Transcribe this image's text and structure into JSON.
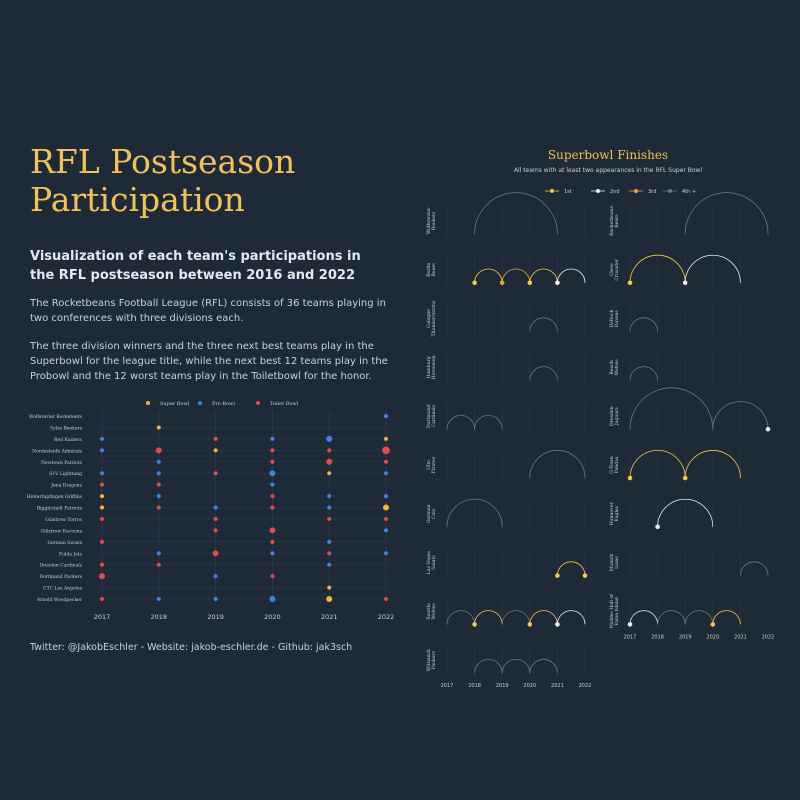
{
  "title": "RFL Postseason Participation",
  "subtitle": "Visualization of each team's participations in the RFL postseason between 2016 and 2022",
  "paragraph1": "The Rocketbeans Football League (RFL) consists of 36 teams playing in two conferences with three divisions each.",
  "paragraph2": "The three division winners and the three next best teams play in the Superbowl for the league title, while the next best 12 teams play in the Probowl and the 12 worst teams play in the Toiletbowl for the honor.",
  "footer": "Twitter: @JakobEschler - Website: jakob-eschler.de - Github: jak3sch",
  "colors": {
    "background": "#1f2a38",
    "title": "#f2c15a",
    "superbowl": "#f2b33d",
    "probowl": "#3d84e6",
    "toiletbowl": "#e24b4b",
    "first": "#f5c842",
    "second": "#e8ecf0",
    "third": "#e8a030",
    "fourth_plus": "#6c7886"
  },
  "chart_data": [
    {
      "type": "scatter",
      "legend": [
        "Super Bowl",
        "Pro Bowl",
        "Toilet Bowl"
      ],
      "legend_position": "top",
      "x": [
        2017,
        2018,
        2019,
        2020,
        2021,
        2022
      ],
      "teams": [
        "Wolfsrevier Rocketeers",
        "Sylas Beekers",
        "Red Raiders",
        "Nordesleidh Admirals",
        "Newtown Patriots",
        "SI-V Lightning",
        "Jena Dragons",
        "Hintertupfingen Griffins",
        "Bigglystadt Patriots",
        "Gülstrow Torros",
        "Gülstrow Racoons",
        "German Swans",
        "Fulda Jets",
        "Dresden Cardinals",
        "Dortmund Packers",
        "CTC Los Angeles",
        "Arnold Woodpecker"
      ],
      "points": [
        {
          "team": "Wolfsrevier Rocketeers",
          "year": 2022,
          "bowl": "Pro Bowl",
          "size": 1
        },
        {
          "team": "Sylas Beekers",
          "year": 2018,
          "bowl": "Super Bowl",
          "size": 1
        },
        {
          "team": "Red Raiders",
          "year": 2017,
          "bowl": "Pro Bowl",
          "size": 1
        },
        {
          "team": "Red Raiders",
          "year": 2019,
          "bowl": "Toilet Bowl",
          "size": 1
        },
        {
          "team": "Red Raiders",
          "year": 2020,
          "bowl": "Pro Bowl",
          "size": 1
        },
        {
          "team": "Red Raiders",
          "year": 2021,
          "bowl": "Pro Bowl",
          "size": 2
        },
        {
          "team": "Red Raiders",
          "year": 2022,
          "bowl": "Super Bowl",
          "size": 1
        },
        {
          "team": "Nordesleidh Admirals",
          "year": 2017,
          "bowl": "Pro Bowl",
          "size": 1
        },
        {
          "team": "Nordesleidh Admirals",
          "year": 2018,
          "bowl": "Toilet Bowl",
          "size": 2
        },
        {
          "team": "Nordesleidh Admirals",
          "year": 2019,
          "bowl": "Super Bowl",
          "size": 1
        },
        {
          "team": "Nordesleidh Admirals",
          "year": 2020,
          "bowl": "Toilet Bowl",
          "size": 1
        },
        {
          "team": "Nordesleidh Admirals",
          "year": 2021,
          "bowl": "Toilet Bowl",
          "size": 1
        },
        {
          "team": "Nordesleidh Admirals",
          "year": 2022,
          "bowl": "Toilet Bowl",
          "size": 3
        },
        {
          "team": "Newtown Patriots",
          "year": 2018,
          "bowl": "Pro Bowl",
          "size": 1
        },
        {
          "team": "Newtown Patriots",
          "year": 2020,
          "bowl": "Toilet Bowl",
          "size": 1
        },
        {
          "team": "Newtown Patriots",
          "year": 2021,
          "bowl": "Toilet Bowl",
          "size": 2
        },
        {
          "team": "Newtown Patriots",
          "year": 2022,
          "bowl": "Toilet Bowl",
          "size": 1
        },
        {
          "team": "SI-V Lightning",
          "year": 2017,
          "bowl": "Pro Bowl",
          "size": 1
        },
        {
          "team": "SI-V Lightning",
          "year": 2018,
          "bowl": "Pro Bowl",
          "size": 1
        },
        {
          "team": "SI-V Lightning",
          "year": 2019,
          "bowl": "Toilet Bowl",
          "size": 1
        },
        {
          "team": "SI-V Lightning",
          "year": 2020,
          "bowl": "Pro Bowl",
          "size": 2
        },
        {
          "team": "SI-V Lightning",
          "year": 2021,
          "bowl": "Super Bowl",
          "size": 1
        },
        {
          "team": "SI-V Lightning",
          "year": 2022,
          "bowl": "Pro Bowl",
          "size": 1
        },
        {
          "team": "Jena Dragons",
          "year": 2017,
          "bowl": "Toilet Bowl",
          "size": 1
        },
        {
          "team": "Jena Dragons",
          "year": 2018,
          "bowl": "Toilet Bowl",
          "size": 1
        },
        {
          "team": "Jena Dragons",
          "year": 2020,
          "bowl": "Pro Bowl",
          "size": 1
        },
        {
          "team": "Hintertupfingen Griffins",
          "year": 2017,
          "bowl": "Super Bowl",
          "size": 1
        },
        {
          "team": "Hintertupfingen Griffins",
          "year": 2018,
          "bowl": "Pro Bowl",
          "size": 1
        },
        {
          "team": "Hintertupfingen Griffins",
          "year": 2020,
          "bowl": "Toilet Bowl",
          "size": 1
        },
        {
          "team": "Hintertupfingen Griffins",
          "year": 2021,
          "bowl": "Pro Bowl",
          "size": 1
        },
        {
          "team": "Hintertupfingen Griffins",
          "year": 2022,
          "bowl": "Pro Bowl",
          "size": 1
        },
        {
          "team": "Bigglystadt Patriots",
          "year": 2017,
          "bowl": "Super Bowl",
          "size": 1
        },
        {
          "team": "Bigglystadt Patriots",
          "year": 2018,
          "bowl": "Toilet Bowl",
          "size": 1
        },
        {
          "team": "Bigglystadt Patriots",
          "year": 2019,
          "bowl": "Pro Bowl",
          "size": 1
        },
        {
          "team": "Bigglystadt Patriots",
          "year": 2020,
          "bowl": "Toilet Bowl",
          "size": 1
        },
        {
          "team": "Bigglystadt Patriots",
          "year": 2021,
          "bowl": "Pro Bowl",
          "size": 1
        },
        {
          "team": "Bigglystadt Patriots",
          "year": 2022,
          "bowl": "Super Bowl",
          "size": 2
        },
        {
          "team": "Gülstrow Torros",
          "year": 2017,
          "bowl": "Toilet Bowl",
          "size": 1
        },
        {
          "team": "Gülstrow Torros",
          "year": 2019,
          "bowl": "Toilet Bowl",
          "size": 1
        },
        {
          "team": "Gülstrow Torros",
          "year": 2021,
          "bowl": "Toilet Bowl",
          "size": 1
        },
        {
          "team": "Gülstrow Torros",
          "year": 2022,
          "bowl": "Toilet Bowl",
          "size": 1
        },
        {
          "team": "Gülstrow Racoons",
          "year": 2019,
          "bowl": "Toilet Bowl",
          "size": 1
        },
        {
          "team": "Gülstrow Racoons",
          "year": 2020,
          "bowl": "Toilet Bowl",
          "size": 2
        },
        {
          "team": "Gülstrow Racoons",
          "year": 2022,
          "bowl": "Pro Bowl",
          "size": 1
        },
        {
          "team": "German Swans",
          "year": 2017,
          "bowl": "Toilet Bowl",
          "size": 1
        },
        {
          "team": "German Swans",
          "year": 2020,
          "bowl": "Toilet Bowl",
          "size": 1
        },
        {
          "team": "German Swans",
          "year": 2021,
          "bowl": "Pro Bowl",
          "size": 1
        },
        {
          "team": "Fulda Jets",
          "year": 2018,
          "bowl": "Pro Bowl",
          "size": 1
        },
        {
          "team": "Fulda Jets",
          "year": 2019,
          "bowl": "Toilet Bowl",
          "size": 2
        },
        {
          "team": "Fulda Jets",
          "year": 2020,
          "bowl": "Pro Bowl",
          "size": 1
        },
        {
          "team": "Fulda Jets",
          "year": 2021,
          "bowl": "Toilet Bowl",
          "size": 1
        },
        {
          "team": "Fulda Jets",
          "year": 2022,
          "bowl": "Pro Bowl",
          "size": 1
        },
        {
          "team": "Dresden Cardinals",
          "year": 2017,
          "bowl": "Toilet Bowl",
          "size": 1
        },
        {
          "team": "Dresden Cardinals",
          "year": 2018,
          "bowl": "Toilet Bowl",
          "size": 1
        },
        {
          "team": "Dresden Cardinals",
          "year": 2021,
          "bowl": "Pro Bowl",
          "size": 1
        },
        {
          "team": "Dortmund Packers",
          "year": 2017,
          "bowl": "Toilet Bowl",
          "size": 2
        },
        {
          "team": "Dortmund Packers",
          "year": 2019,
          "bowl": "Pro Bowl",
          "size": 1
        },
        {
          "team": "Dortmund Packers",
          "year": 2020,
          "bowl": "Toilet Bowl",
          "size": 1
        },
        {
          "team": "CTC Los Angeles",
          "year": 2021,
          "bowl": "Super Bowl",
          "size": 1
        },
        {
          "team": "Arnold Woodpecker",
          "year": 2017,
          "bowl": "Toilet Bowl",
          "size": 1
        },
        {
          "team": "Arnold Woodpecker",
          "year": 2018,
          "bowl": "Pro Bowl",
          "size": 1
        },
        {
          "team": "Arnold Woodpecker",
          "year": 2019,
          "bowl": "Pro Bowl",
          "size": 1
        },
        {
          "team": "Arnold Woodpecker",
          "year": 2020,
          "bowl": "Pro Bowl",
          "size": 2
        },
        {
          "team": "Arnold Woodpecker",
          "year": 2021,
          "bowl": "Super Bowl",
          "size": 2
        },
        {
          "team": "Arnold Woodpecker",
          "year": 2022,
          "bowl": "Toilet Bowl",
          "size": 1
        }
      ]
    },
    {
      "type": "line",
      "title": "Superbowl Finishes",
      "subtitle": "All teams with at least two appearances in the RFL Super Bowl",
      "legend": [
        "1st",
        "2nd",
        "3rd",
        "4th +"
      ],
      "legend_position": "top",
      "x": [
        2017,
        2018,
        2019,
        2020,
        2021,
        2022
      ],
      "panels": [
        {
          "team": "Wolfsrevier Rockets",
          "column": 0,
          "row": 0,
          "appearances": [
            {
              "year": 2018,
              "place": "4th +"
            },
            {
              "year": 2021,
              "place": "4th +"
            }
          ]
        },
        {
          "team": "Berlin Bears",
          "column": 0,
          "row": 1,
          "appearances": [
            {
              "year": 2018,
              "place": "1st"
            },
            {
              "year": 2019,
              "place": "3rd"
            },
            {
              "year": 2020,
              "place": "1st"
            },
            {
              "year": 2021,
              "place": "2nd"
            },
            {
              "year": 2022,
              "place": "4th +"
            }
          ]
        },
        {
          "team": "Cologne Thunderstorms",
          "column": 0,
          "row": 2,
          "appearances": [
            {
              "year": 2020,
              "place": "4th +"
            },
            {
              "year": 2021,
              "place": "4th +"
            }
          ]
        },
        {
          "team": "Hamburg Horsemen",
          "column": 0,
          "row": 3,
          "appearances": [
            {
              "year": 2020,
              "place": "4th +"
            },
            {
              "year": 2021,
              "place": "4th +"
            }
          ]
        },
        {
          "team": "Dortmund Cardinals",
          "column": 0,
          "row": 4,
          "appearances": [
            {
              "year": 2017,
              "place": "4th +"
            },
            {
              "year": 2018,
              "place": "4th +"
            },
            {
              "year": 2019,
              "place": "4th +"
            }
          ]
        },
        {
          "team": "Ulm Pirates",
          "column": 0,
          "row": 5,
          "appearances": [
            {
              "year": 2020,
              "place": "4th +"
            },
            {
              "year": 2022,
              "place": "4th +"
            }
          ]
        },
        {
          "team": "German Cats",
          "column": 0,
          "row": 6,
          "appearances": [
            {
              "year": 2017,
              "place": "4th +"
            },
            {
              "year": 2019,
              "place": "4th +"
            }
          ]
        },
        {
          "team": "Las Vegas Saints",
          "column": 0,
          "row": 7,
          "appearances": [
            {
              "year": 2021,
              "place": "1st"
            },
            {
              "year": 2022,
              "place": "1st"
            }
          ]
        },
        {
          "team": "Seattle Wolves",
          "column": 0,
          "row": 8,
          "appearances": [
            {
              "year": 2017,
              "place": "4th +"
            },
            {
              "year": 2018,
              "place": "1st"
            },
            {
              "year": 2019,
              "place": "4th +"
            },
            {
              "year": 2020,
              "place": "1st"
            },
            {
              "year": 2021,
              "place": "2nd"
            },
            {
              "year": 2022,
              "place": "4th +"
            }
          ]
        },
        {
          "team": "Wittenick Packers",
          "column": 0,
          "row": 9,
          "appearances": [
            {
              "year": 2018,
              "place": "4th +"
            },
            {
              "year": 2019,
              "place": "4th +"
            },
            {
              "year": 2020,
              "place": "4th +"
            },
            {
              "year": 2021,
              "place": "4th +"
            }
          ]
        },
        {
          "team": "Rocketbeans Bears",
          "column": 1,
          "row": 0,
          "appearances": [
            {
              "year": 2019,
              "place": "4th +"
            },
            {
              "year": 2022,
              "place": "4th +"
            }
          ]
        },
        {
          "team": "Cleve Crusader",
          "column": 1,
          "row": 1,
          "appearances": [
            {
              "year": 2017,
              "place": "1st"
            },
            {
              "year": 2019,
              "place": "2nd"
            },
            {
              "year": 2021,
              "place": "4th +"
            }
          ]
        },
        {
          "team": "DeBock Ravens",
          "column": 1,
          "row": 2,
          "appearances": [
            {
              "year": 2017,
              "place": "4th +"
            },
            {
              "year": 2018,
              "place": "4th +"
            }
          ]
        },
        {
          "team": "Beach Wolves",
          "column": 1,
          "row": 3,
          "appearances": [
            {
              "year": 2017,
              "place": "4th +"
            },
            {
              "year": 2018,
              "place": "4th +"
            }
          ]
        },
        {
          "team": "Dresden Jaguars",
          "column": 1,
          "row": 4,
          "appearances": [
            {
              "year": 2017,
              "place": "4th +"
            },
            {
              "year": 2020,
              "place": "4th +"
            },
            {
              "year": 2022,
              "place": "2nd"
            }
          ]
        },
        {
          "team": "G-Town Pandas",
          "column": 1,
          "row": 5,
          "appearances": [
            {
              "year": 2017,
              "place": "1st"
            },
            {
              "year": 2019,
              "place": "1st"
            },
            {
              "year": 2021,
              "place": "4th +"
            }
          ]
        },
        {
          "team": "Hannover Eagles",
          "column": 1,
          "row": 6,
          "appearances": [
            {
              "year": 2018,
              "place": "2nd"
            },
            {
              "year": 2020,
              "place": "4th +"
            }
          ]
        },
        {
          "team": "Munich Lions",
          "column": 1,
          "row": 7,
          "appearances": [
            {
              "year": 2021,
              "place": "4th +"
            },
            {
              "year": 2022,
              "place": "4th +"
            }
          ]
        },
        {
          "team": "Nickles Hall of Fame Island",
          "column": 1,
          "row": 8,
          "appearances": [
            {
              "year": 2017,
              "place": "2nd"
            },
            {
              "year": 2018,
              "place": "4th +"
            },
            {
              "year": 2019,
              "place": "4th +"
            },
            {
              "year": 2020,
              "place": "1st"
            },
            {
              "year": 2021,
              "place": "4th +"
            }
          ]
        }
      ]
    }
  ]
}
